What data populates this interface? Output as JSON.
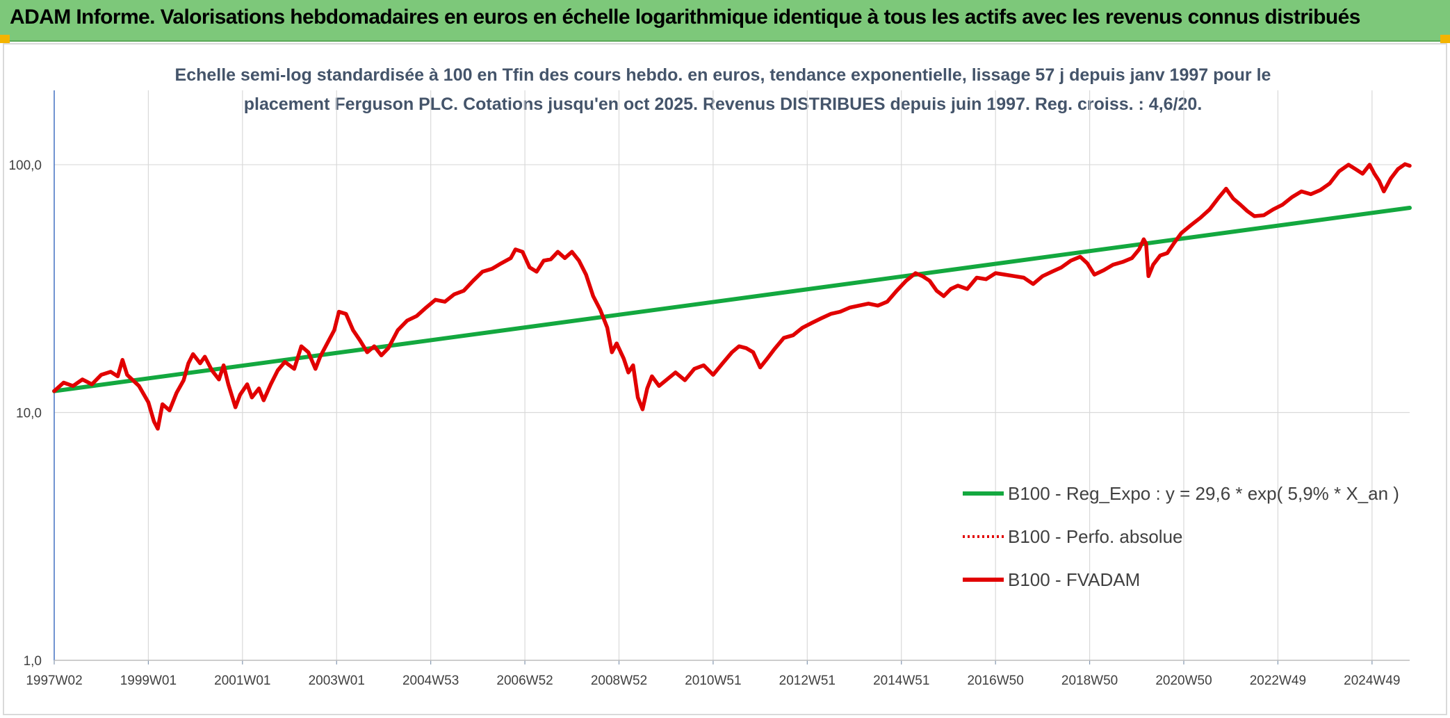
{
  "banner": {
    "title": "ADAM Informe. Valorisations hebdomadaires en euros en échelle logarithmique identique à tous les actifs avec les revenus connus distribués"
  },
  "colors": {
    "banner": "#7dc87a",
    "trend": "#13a83f",
    "fvadam": "#e10000",
    "perfo": "#e10000"
  },
  "chart_data": {
    "type": "line",
    "title_lines": [
      "Echelle semi-log standardisée à 100 en Tfin des cours hebdo. en euros, tendance exponentielle, lissage 57 j depuis janv 1997 pour le",
      "placement Ferguson PLC. Cotations jusqu'en oct 2025. Revenus DISTRIBUES depuis juin 1997. Reg. croiss. : 4,6/20."
    ],
    "y_scale": "log",
    "ylim": [
      1,
      100
    ],
    "y_ticks": [
      "1,0",
      "10,0",
      "100,0"
    ],
    "xlim": [
      1997.0,
      2025.8
    ],
    "x_ticks": [
      {
        "x": 1997.0,
        "label": "1997W02"
      },
      {
        "x": 1999.0,
        "label": "1999W01"
      },
      {
        "x": 2001.0,
        "label": "2001W01"
      },
      {
        "x": 2003.0,
        "label": "2003W01"
      },
      {
        "x": 2005.0,
        "label": "2004W53"
      },
      {
        "x": 2007.0,
        "label": "2006W52"
      },
      {
        "x": 2009.0,
        "label": "2008W52"
      },
      {
        "x": 2011.0,
        "label": "2010W51"
      },
      {
        "x": 2013.0,
        "label": "2012W51"
      },
      {
        "x": 2015.0,
        "label": "2014W51"
      },
      {
        "x": 2017.0,
        "label": "2016W50"
      },
      {
        "x": 2019.0,
        "label": "2018W50"
      },
      {
        "x": 2021.0,
        "label": "2020W50"
      },
      {
        "x": 2023.0,
        "label": "2022W49"
      },
      {
        "x": 2025.0,
        "label": "2024W49"
      }
    ],
    "grid": "vertical-and-horizontal",
    "legend_position": "bottom-right",
    "series": [
      {
        "name": "B100 - Reg_Expo : y = 29,6 * exp( 5,9% *  X_an )",
        "style": "solid",
        "points": [
          [
            1997.0,
            12.2
          ],
          [
            2025.8,
            67.0
          ]
        ]
      },
      {
        "name": "B100 - Perfo. absolue",
        "style": "dotted",
        "points": []
      },
      {
        "name": "B100 - FVADAM",
        "style": "solid",
        "points": [
          [
            1997.0,
            12.2
          ],
          [
            1997.2,
            13.2
          ],
          [
            1997.4,
            12.8
          ],
          [
            1997.6,
            13.6
          ],
          [
            1997.8,
            13.0
          ],
          [
            1998.0,
            14.2
          ],
          [
            1998.2,
            14.6
          ],
          [
            1998.35,
            14.0
          ],
          [
            1998.45,
            16.3
          ],
          [
            1998.55,
            14.2
          ],
          [
            1998.8,
            12.8
          ],
          [
            1999.0,
            11.0
          ],
          [
            1999.12,
            9.2
          ],
          [
            1999.2,
            8.6
          ],
          [
            1999.3,
            10.8
          ],
          [
            1999.45,
            10.2
          ],
          [
            1999.6,
            12.0
          ],
          [
            1999.75,
            13.5
          ],
          [
            1999.85,
            15.8
          ],
          [
            1999.95,
            17.2
          ],
          [
            2000.1,
            15.8
          ],
          [
            2000.2,
            16.8
          ],
          [
            2000.35,
            14.8
          ],
          [
            2000.5,
            13.6
          ],
          [
            2000.6,
            15.5
          ],
          [
            2000.7,
            13.0
          ],
          [
            2000.85,
            10.5
          ],
          [
            2000.95,
            11.8
          ],
          [
            2001.1,
            13.0
          ],
          [
            2001.2,
            11.5
          ],
          [
            2001.35,
            12.5
          ],
          [
            2001.45,
            11.2
          ],
          [
            2001.6,
            13.0
          ],
          [
            2001.75,
            14.8
          ],
          [
            2001.9,
            16.0
          ],
          [
            2002.1,
            15.0
          ],
          [
            2002.25,
            18.5
          ],
          [
            2002.4,
            17.5
          ],
          [
            2002.55,
            15.0
          ],
          [
            2002.65,
            16.8
          ],
          [
            2002.8,
            19.0
          ],
          [
            2002.95,
            21.5
          ],
          [
            2003.05,
            25.5
          ],
          [
            2003.2,
            25.0
          ],
          [
            2003.35,
            21.5
          ],
          [
            2003.5,
            19.5
          ],
          [
            2003.65,
            17.5
          ],
          [
            2003.8,
            18.5
          ],
          [
            2003.95,
            17.0
          ],
          [
            2004.1,
            18.2
          ],
          [
            2004.3,
            21.5
          ],
          [
            2004.5,
            23.5
          ],
          [
            2004.7,
            24.5
          ],
          [
            2004.9,
            26.5
          ],
          [
            2005.1,
            28.5
          ],
          [
            2005.3,
            28.0
          ],
          [
            2005.5,
            30.0
          ],
          [
            2005.7,
            31.0
          ],
          [
            2005.9,
            34.0
          ],
          [
            2006.1,
            37.0
          ],
          [
            2006.3,
            38.0
          ],
          [
            2006.5,
            40.0
          ],
          [
            2006.7,
            42.0
          ],
          [
            2006.8,
            45.5
          ],
          [
            2006.95,
            44.5
          ],
          [
            2007.1,
            38.5
          ],
          [
            2007.25,
            37.0
          ],
          [
            2007.4,
            41.0
          ],
          [
            2007.55,
            41.5
          ],
          [
            2007.7,
            44.5
          ],
          [
            2007.85,
            42.0
          ],
          [
            2008.0,
            44.5
          ],
          [
            2008.15,
            41.0
          ],
          [
            2008.3,
            36.0
          ],
          [
            2008.45,
            29.5
          ],
          [
            2008.6,
            26.0
          ],
          [
            2008.75,
            22.0
          ],
          [
            2008.85,
            17.5
          ],
          [
            2008.95,
            19.0
          ],
          [
            2009.1,
            16.5
          ],
          [
            2009.2,
            14.5
          ],
          [
            2009.3,
            15.5
          ],
          [
            2009.4,
            11.5
          ],
          [
            2009.5,
            10.3
          ],
          [
            2009.6,
            12.5
          ],
          [
            2009.7,
            14.0
          ],
          [
            2009.85,
            12.8
          ],
          [
            2010.0,
            13.5
          ],
          [
            2010.2,
            14.5
          ],
          [
            2010.4,
            13.5
          ],
          [
            2010.6,
            15.0
          ],
          [
            2010.8,
            15.5
          ],
          [
            2011.0,
            14.2
          ],
          [
            2011.2,
            15.8
          ],
          [
            2011.4,
            17.5
          ],
          [
            2011.55,
            18.5
          ],
          [
            2011.7,
            18.2
          ],
          [
            2011.85,
            17.5
          ],
          [
            2012.0,
            15.2
          ],
          [
            2012.15,
            16.5
          ],
          [
            2012.3,
            18.0
          ],
          [
            2012.5,
            20.0
          ],
          [
            2012.7,
            20.5
          ],
          [
            2012.9,
            22.0
          ],
          [
            2013.1,
            23.0
          ],
          [
            2013.3,
            24.0
          ],
          [
            2013.5,
            25.0
          ],
          [
            2013.7,
            25.5
          ],
          [
            2013.9,
            26.5
          ],
          [
            2014.1,
            27.0
          ],
          [
            2014.3,
            27.5
          ],
          [
            2014.5,
            27.0
          ],
          [
            2014.7,
            28.0
          ],
          [
            2014.9,
            31.0
          ],
          [
            2015.1,
            34.0
          ],
          [
            2015.3,
            36.5
          ],
          [
            2015.45,
            35.5
          ],
          [
            2015.6,
            34.0
          ],
          [
            2015.75,
            31.0
          ],
          [
            2015.9,
            29.5
          ],
          [
            2016.05,
            31.5
          ],
          [
            2016.2,
            32.5
          ],
          [
            2016.4,
            31.5
          ],
          [
            2016.6,
            35.0
          ],
          [
            2016.8,
            34.5
          ],
          [
            2017.0,
            36.5
          ],
          [
            2017.2,
            36.0
          ],
          [
            2017.4,
            35.5
          ],
          [
            2017.6,
            35.0
          ],
          [
            2017.8,
            33.0
          ],
          [
            2018.0,
            35.5
          ],
          [
            2018.2,
            37.0
          ],
          [
            2018.4,
            38.5
          ],
          [
            2018.6,
            41.0
          ],
          [
            2018.8,
            42.5
          ],
          [
            2018.95,
            40.0
          ],
          [
            2019.1,
            36.0
          ],
          [
            2019.3,
            37.5
          ],
          [
            2019.5,
            39.5
          ],
          [
            2019.7,
            40.5
          ],
          [
            2019.9,
            42.0
          ],
          [
            2020.05,
            45.5
          ],
          [
            2020.15,
            50.0
          ],
          [
            2020.2,
            48.0
          ],
          [
            2020.25,
            35.5
          ],
          [
            2020.35,
            39.5
          ],
          [
            2020.5,
            43.0
          ],
          [
            2020.65,
            44.0
          ],
          [
            2020.8,
            48.5
          ],
          [
            2020.95,
            53.0
          ],
          [
            2021.15,
            57.0
          ],
          [
            2021.35,
            61.0
          ],
          [
            2021.55,
            66.0
          ],
          [
            2021.75,
            74.0
          ],
          [
            2021.9,
            80.0
          ],
          [
            2022.05,
            73.0
          ],
          [
            2022.2,
            69.0
          ],
          [
            2022.35,
            65.0
          ],
          [
            2022.5,
            62.0
          ],
          [
            2022.7,
            62.5
          ],
          [
            2022.9,
            66.0
          ],
          [
            2023.1,
            69.0
          ],
          [
            2023.3,
            74.0
          ],
          [
            2023.5,
            78.0
          ],
          [
            2023.7,
            76.0
          ],
          [
            2023.9,
            79.0
          ],
          [
            2024.1,
            84.0
          ],
          [
            2024.3,
            94.0
          ],
          [
            2024.5,
            100.0
          ],
          [
            2024.65,
            96.0
          ],
          [
            2024.8,
            92.0
          ],
          [
            2024.95,
            100.0
          ],
          [
            2025.05,
            92.0
          ],
          [
            2025.15,
            86.0
          ],
          [
            2025.25,
            78.0
          ],
          [
            2025.4,
            88.0
          ],
          [
            2025.55,
            96.0
          ],
          [
            2025.7,
            100.5
          ],
          [
            2025.8,
            99.0
          ]
        ]
      }
    ]
  }
}
